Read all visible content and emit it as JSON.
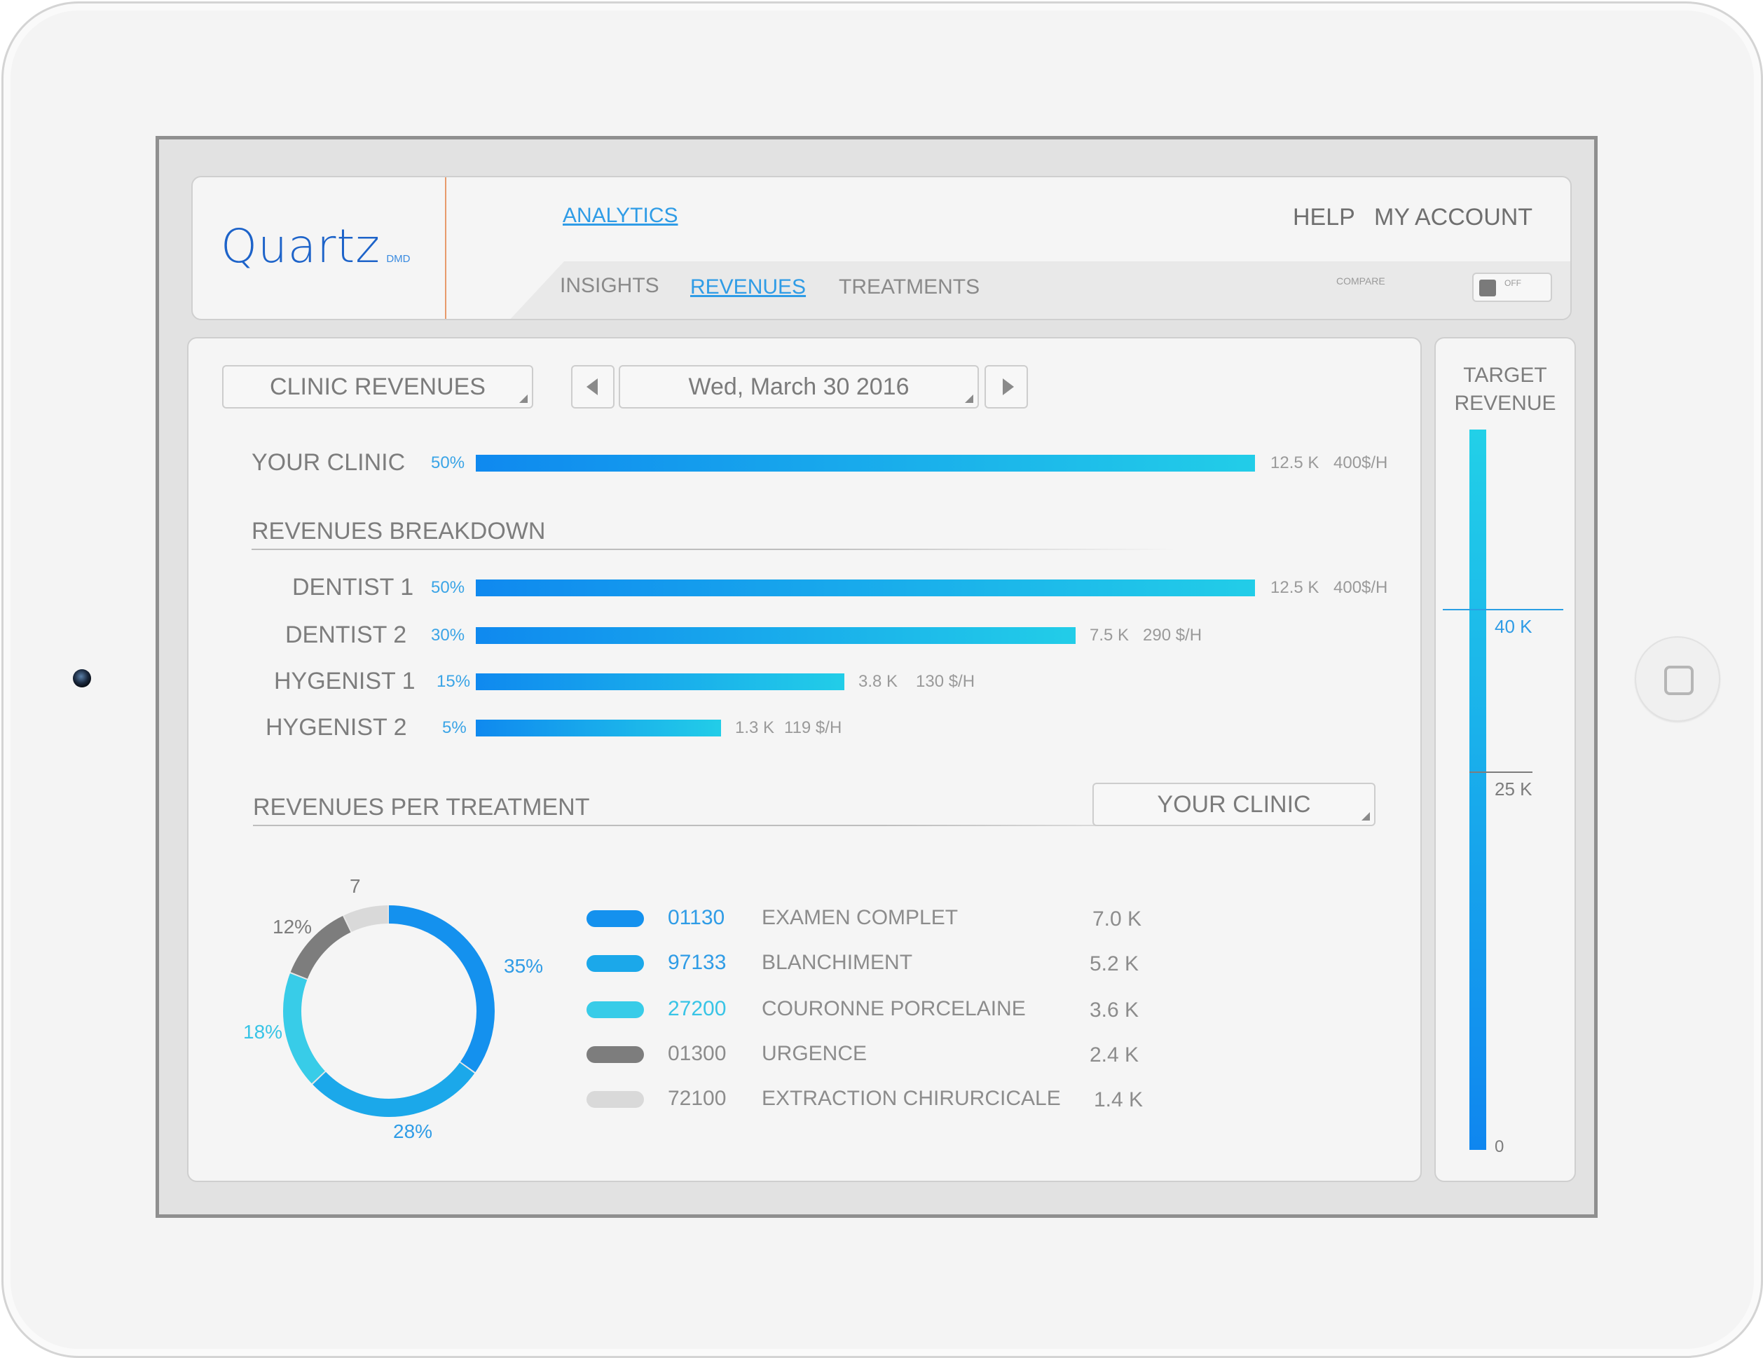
{
  "brand": {
    "name": "Quartz",
    "suffix": "DMD"
  },
  "nav": {
    "primary": "ANALYTICS",
    "help": "HELP",
    "account": "MY ACCOUNT",
    "tabs": [
      {
        "label": "INSIGHTS"
      },
      {
        "label": "REVENUES"
      },
      {
        "label": "TREATMENTS"
      }
    ],
    "compare_label": "COMPARE",
    "compare_toggle": "OFF"
  },
  "controls": {
    "report_select": "CLINIC REVENUES",
    "date": "Wed, March 30 2016",
    "prev_icon": "chevron-left-icon",
    "next_icon": "chevron-right-icon"
  },
  "clinic": {
    "label": "YOUR CLINIC",
    "percent": "50%",
    "amount": "12.5 K",
    "rate": "400$/H",
    "share": 0.5
  },
  "breakdown": {
    "title": "REVENUES BREAKDOWN",
    "rows": [
      {
        "label": "DENTIST 1",
        "percent": "50%",
        "amount": "12.5 K",
        "rate": "400$/H",
        "share": 0.5
      },
      {
        "label": "DENTIST 2",
        "percent": "30%",
        "amount": "7.5 K",
        "rate": "290 $/H",
        "share": 0.3
      },
      {
        "label": "HYGENIST 1",
        "percent": "15%",
        "amount": "3.8 K",
        "rate": "130 $/H",
        "share": 0.15
      },
      {
        "label": "HYGENIST 2",
        "percent": "5%",
        "amount": "1.3 K",
        "rate": "119 $/H",
        "share": 0.05
      }
    ]
  },
  "treatments": {
    "title": "REVENUES PER TREATMENT",
    "scope_select": "YOUR CLINIC",
    "donut_labels": {
      "a": "35%",
      "b": "28%",
      "c": "18%",
      "d": "12%",
      "e": "7"
    },
    "items": [
      {
        "code": "01130",
        "name": "EXAMEN COMPLET",
        "value": "7.0 K",
        "color": "#1491ee",
        "share": 35
      },
      {
        "code": "97133",
        "name": "BLANCHIMENT",
        "value": "5.2 K",
        "color": "#1ba8ea",
        "share": 28
      },
      {
        "code": "27200",
        "name": "COURONNE PORCELAINE",
        "value": "3.6 K",
        "color": "#38cce8",
        "share": 18
      },
      {
        "code": "01300",
        "name": "URGENCE",
        "value": "2.4 K",
        "color": "#7d7d7d",
        "share": 12
      },
      {
        "code": "72100",
        "name": "EXTRACTION CHIRURCICALE",
        "value": "1.4 K",
        "color": "#d9d9d9",
        "share": 7
      }
    ]
  },
  "target": {
    "title_line1": "TARGET",
    "title_line2": "REVENUE",
    "marks": [
      {
        "label": "40 K"
      },
      {
        "label": "25 K"
      },
      {
        "label": "0"
      }
    ]
  }
}
